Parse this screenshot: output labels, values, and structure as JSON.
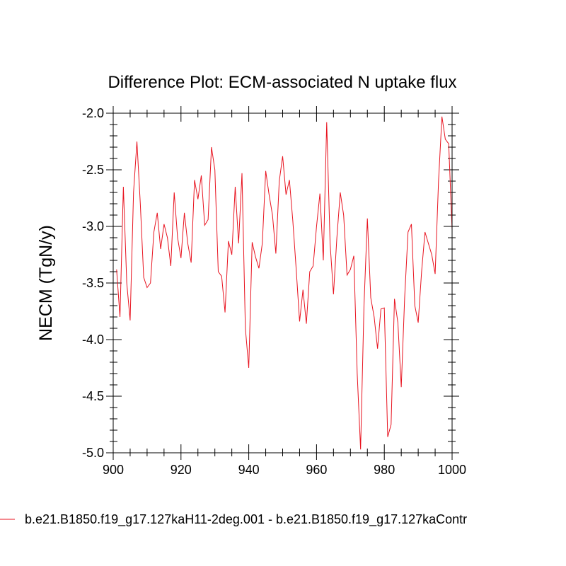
{
  "chart_data": {
    "type": "line",
    "title": "Difference Plot: ECM-associated N uptake flux",
    "xlabel": "",
    "ylabel": "NECM  (TgN/y)",
    "xlim": [
      900,
      1000
    ],
    "ylim": [
      -5.0,
      -2.0
    ],
    "x_ticks": [
      "900",
      "920",
      "940",
      "960",
      "980",
      "1000"
    ],
    "y_ticks": [
      "-2.0",
      "-2.5",
      "-3.0",
      "-3.5",
      "-4.0",
      "-4.5",
      "-5.0"
    ],
    "grid": false,
    "legend_position": "bottom",
    "series": [
      {
        "name": "b.e21.B1850.f19_g17.127kaH11-2deg.001 - b.e21.B1850.f19_g17.127kaContr",
        "color": "#e8131f",
        "x": [
          901,
          902,
          903,
          904,
          905,
          906,
          907,
          908,
          909,
          910,
          911,
          912,
          913,
          914,
          915,
          916,
          917,
          918,
          919,
          920,
          921,
          922,
          923,
          924,
          925,
          926,
          927,
          928,
          929,
          930,
          931,
          932,
          933,
          934,
          935,
          936,
          937,
          938,
          939,
          940,
          941,
          942,
          943,
          944,
          945,
          946,
          947,
          948,
          949,
          950,
          951,
          952,
          953,
          954,
          955,
          956,
          957,
          958,
          959,
          960,
          961,
          962,
          963,
          964,
          965,
          966,
          967,
          968,
          969,
          970,
          971,
          972,
          973,
          974,
          975,
          976,
          977,
          978,
          979,
          980,
          981,
          982,
          983,
          984,
          985,
          986,
          987,
          988,
          989,
          990,
          991,
          992,
          993,
          994,
          995,
          996,
          997,
          998,
          999,
          1000
        ],
        "values": [
          -3.38,
          -3.8,
          -2.65,
          -3.5,
          -3.83,
          -2.7,
          -2.25,
          -2.8,
          -3.45,
          -3.54,
          -3.5,
          -3.05,
          -2.88,
          -3.2,
          -2.98,
          -3.1,
          -3.35,
          -2.7,
          -3.1,
          -3.28,
          -2.88,
          -3.15,
          -3.32,
          -2.59,
          -2.76,
          -2.55,
          -2.99,
          -2.94,
          -2.3,
          -2.5,
          -3.4,
          -3.44,
          -3.76,
          -3.13,
          -3.25,
          -2.65,
          -3.15,
          -2.53,
          -3.9,
          -4.25,
          -3.14,
          -3.27,
          -3.37,
          -3.15,
          -2.51,
          -2.72,
          -2.9,
          -3.24,
          -2.6,
          -2.38,
          -2.72,
          -2.59,
          -2.95,
          -3.38,
          -3.84,
          -3.56,
          -3.86,
          -3.4,
          -3.35,
          -3.0,
          -2.71,
          -3.3,
          -2.08,
          -3.15,
          -3.6,
          -3.1,
          -2.7,
          -2.9,
          -3.43,
          -3.38,
          -3.26,
          -4.3,
          -4.97,
          -3.7,
          -2.93,
          -3.63,
          -3.8,
          -4.08,
          -3.73,
          -3.72,
          -4.86,
          -4.75,
          -3.64,
          -3.85,
          -4.42,
          -3.63,
          -3.05,
          -2.98,
          -3.7,
          -3.85,
          -3.4,
          -3.05,
          -3.15,
          -3.25,
          -3.42,
          -2.6,
          -2.03,
          -2.23,
          -2.27,
          -3.03
        ]
      }
    ]
  }
}
